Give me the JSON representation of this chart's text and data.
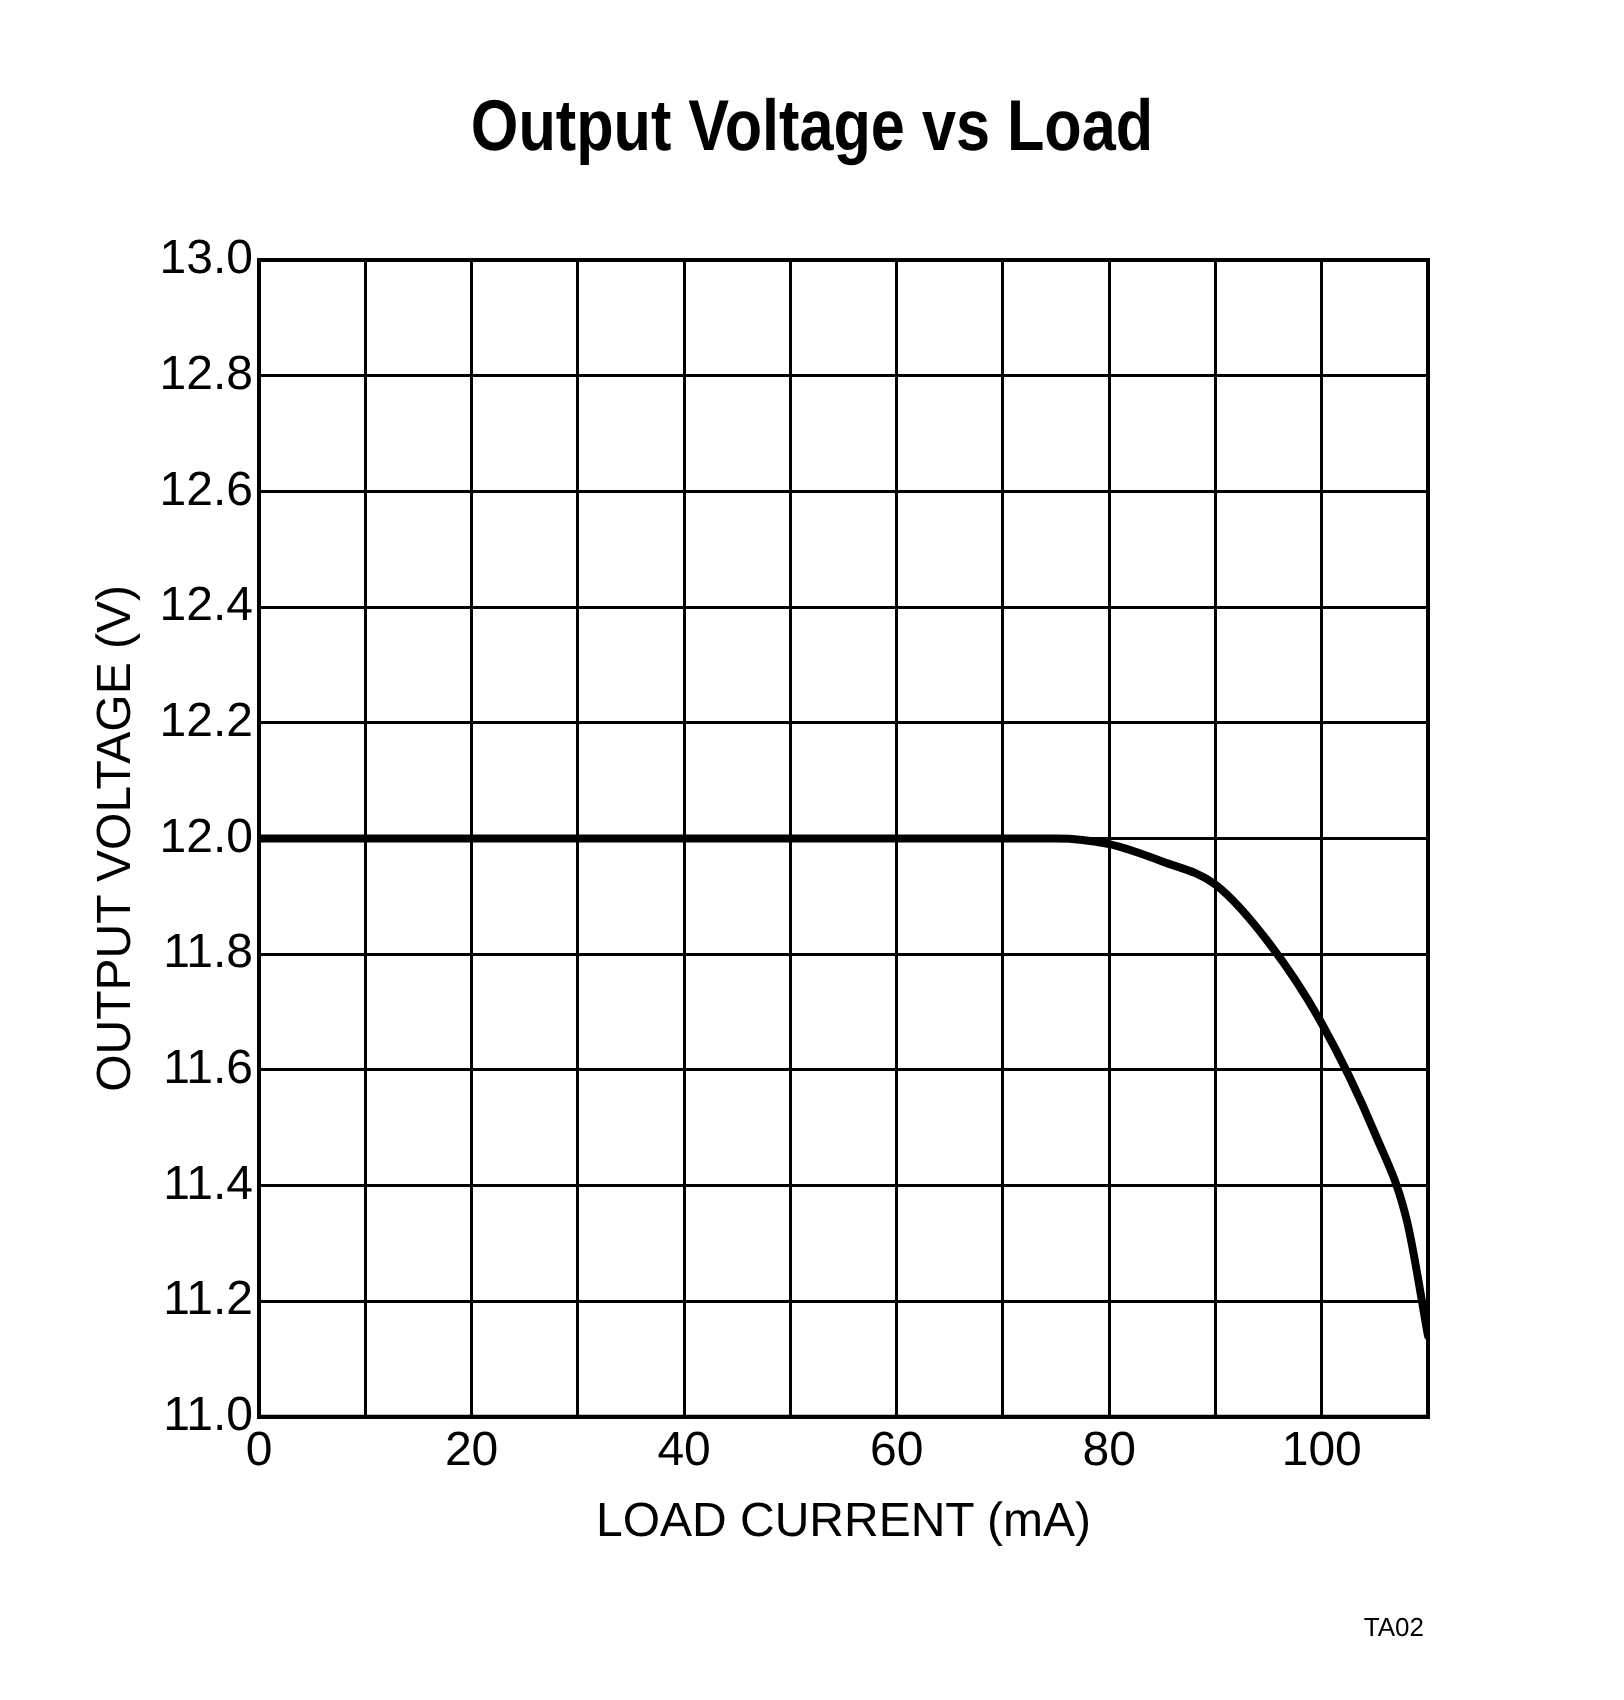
{
  "chart_data": {
    "type": "line",
    "title": "Output Voltage vs Load",
    "xlabel": "LOAD CURRENT (mA)",
    "ylabel": "OUTPUT VOLTAGE (V)",
    "annotations": [
      "TA02"
    ],
    "xlim": [
      0,
      110
    ],
    "ylim": [
      11.0,
      13.0
    ],
    "xticks": [
      0,
      {
        "value": 10,
        "label": null
      },
      20,
      {
        "value": 30,
        "label": null
      },
      40,
      {
        "value": 50,
        "label": null
      },
      60,
      {
        "value": 70,
        "label": null
      },
      80,
      {
        "value": 90,
        "label": null
      },
      100,
      {
        "value": 110,
        "label": null
      }
    ],
    "yticks": [
      {
        "value": 11.0,
        "label": "11.0"
      },
      11.2,
      11.4,
      11.6,
      11.8,
      {
        "value": 12.0,
        "label": "12.0"
      },
      12.2,
      12.4,
      12.6,
      12.8,
      {
        "value": 13.0,
        "label": "13.0"
      }
    ],
    "grid": true,
    "legend": false,
    "marker": "none",
    "line_style": "solid",
    "series": [
      {
        "color": "#000000",
        "x": [
          0,
          20,
          40,
          60,
          70,
          75,
          80,
          85,
          90,
          95,
          100,
          105,
          108,
          110
        ],
        "values": [
          12.0,
          12.0,
          12.0,
          12.0,
          12.0,
          12.0,
          11.99,
          11.96,
          11.92,
          11.82,
          11.68,
          11.49,
          11.34,
          11.14
        ]
      }
    ]
  }
}
